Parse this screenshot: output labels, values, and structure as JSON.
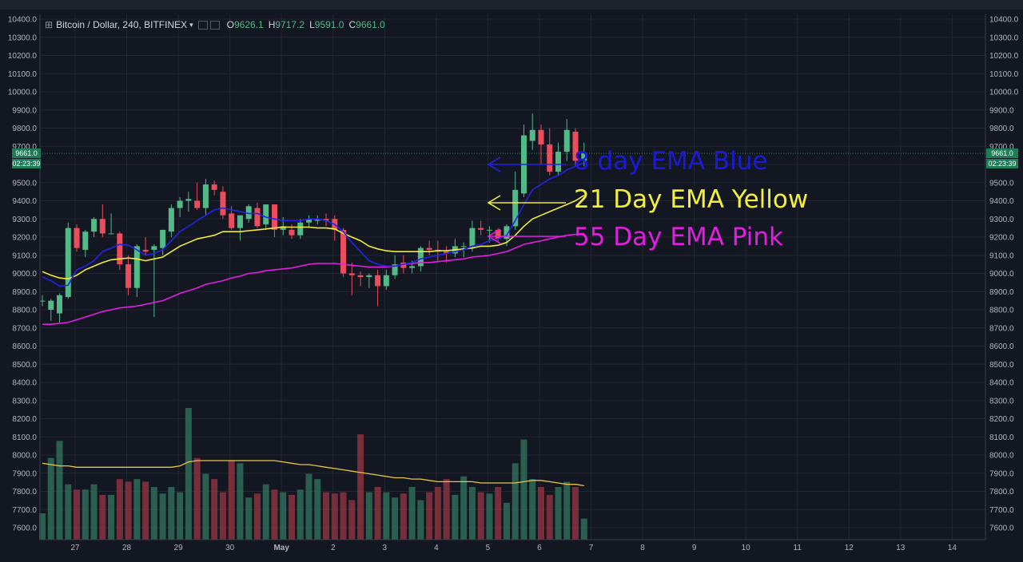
{
  "header": {
    "symbol_label": "Bitcoin / Dollar, 240, BITFINEX",
    "caret": "▾",
    "open_label": "O",
    "open_value": "9626.1",
    "high_label": "H",
    "high_value": "9717.2",
    "low_label": "L",
    "low_value": "9591.0",
    "close_label": "C",
    "close_value": "9661.0"
  },
  "badges": {
    "price": "9661.0",
    "timer": "02:23:39"
  },
  "annotations": [
    {
      "text": "8 day EMA Blue",
      "color": "#1a1ad8"
    },
    {
      "text": "21 Day EMA Yellow",
      "color": "#f4f03a"
    },
    {
      "text": "55 Day EMA Pink",
      "color": "#e21ee0"
    }
  ],
  "colors": {
    "up": "#53b987",
    "down": "#eb4d5c",
    "ema8": "#2424e8",
    "ema21": "#f2ec3a",
    "ema55": "#e21ee0",
    "vol_ma": "#e8c44a",
    "bg": "#131722"
  },
  "chart_data": {
    "type": "candlestick",
    "y_ticks": [
      "10400.0",
      "10300.0",
      "10200.0",
      "10100.0",
      "10000.0",
      "9900.0",
      "9800.0",
      "9700.0",
      "9600.0",
      "9500.0",
      "9400.0",
      "9300.0",
      "9200.0",
      "9100.0",
      "9000.0",
      "8900.0",
      "8800.0",
      "8700.0",
      "8600.0",
      "8500.0",
      "8400.0",
      "8300.0",
      "8200.0",
      "8100.0",
      "8000.0",
      "7900.0",
      "7800.0",
      "7700.0",
      "7600.0"
    ],
    "ylim": [
      7550,
      10430
    ],
    "x_ticks": [
      "27",
      "28",
      "29",
      "30",
      "May",
      "2",
      "3",
      "4",
      "5",
      "6",
      "7",
      "8",
      "9",
      "10",
      "11",
      "12",
      "13",
      "14"
    ],
    "candles": [
      [
        8850,
        8880,
        8820,
        8850
      ],
      [
        8800,
        8860,
        8740,
        8850
      ],
      [
        8780,
        8890,
        8730,
        8880
      ],
      [
        8870,
        9280,
        8860,
        9250
      ],
      [
        9250,
        9270,
        9120,
        9140
      ],
      [
        9130,
        9240,
        9090,
        9230
      ],
      [
        9230,
        9310,
        9200,
        9300
      ],
      [
        9300,
        9380,
        9200,
        9220
      ],
      [
        9220,
        9330,
        9220,
        9220
      ],
      [
        9220,
        9230,
        9020,
        9050
      ],
      [
        9050,
        9100,
        8880,
        8920
      ],
      [
        8920,
        9160,
        8870,
        9150
      ],
      [
        9130,
        9200,
        9100,
        9120
      ],
      [
        9130,
        9160,
        8760,
        9150
      ],
      [
        9140,
        9240,
        9100,
        9240
      ],
      [
        9230,
        9380,
        9200,
        9360
      ],
      [
        9360,
        9420,
        9310,
        9400
      ],
      [
        9400,
        9450,
        9340,
        9410
      ],
      [
        9400,
        9500,
        9350,
        9360
      ],
      [
        9360,
        9520,
        9320,
        9490
      ],
      [
        9490,
        9510,
        9430,
        9460
      ],
      [
        9450,
        9480,
        9300,
        9320
      ],
      [
        9330,
        9370,
        9240,
        9250
      ],
      [
        9250,
        9320,
        9180,
        9320
      ],
      [
        9300,
        9380,
        9280,
        9370
      ],
      [
        9360,
        9390,
        9250,
        9260
      ],
      [
        9270,
        9380,
        9240,
        9380
      ],
      [
        9380,
        9380,
        9200,
        9240
      ],
      [
        9240,
        9310,
        9210,
        9260
      ],
      [
        9240,
        9270,
        9190,
        9210
      ],
      [
        9210,
        9300,
        9190,
        9280
      ],
      [
        9280,
        9320,
        9250,
        9300
      ],
      [
        9290,
        9320,
        9270,
        9300
      ],
      [
        9300,
        9330,
        9260,
        9290
      ],
      [
        9300,
        9320,
        9180,
        9240
      ],
      [
        9240,
        9250,
        8980,
        9000
      ],
      [
        9000,
        9060,
        8880,
        8990
      ],
      [
        8990,
        9010,
        8930,
        8980
      ],
      [
        8980,
        9000,
        8920,
        8990
      ],
      [
        8990,
        9020,
        8820,
        8930
      ],
      [
        8930,
        9020,
        8910,
        8990
      ],
      [
        8990,
        9100,
        8970,
        9050
      ],
      [
        9060,
        9100,
        9000,
        9030
      ],
      [
        9030,
        9070,
        9000,
        9040
      ],
      [
        9040,
        9150,
        9010,
        9140
      ],
      [
        9140,
        9180,
        9100,
        9130
      ],
      [
        9130,
        9180,
        9070,
        9120
      ],
      [
        9120,
        9150,
        9060,
        9110
      ],
      [
        9110,
        9190,
        9090,
        9150
      ],
      [
        9150,
        9170,
        9090,
        9150
      ],
      [
        9150,
        9290,
        9120,
        9250
      ],
      [
        9250,
        9290,
        9210,
        9240
      ],
      [
        9240,
        9260,
        9170,
        9240
      ],
      [
        9240,
        9250,
        9170,
        9190
      ],
      [
        9190,
        9270,
        9150,
        9260
      ],
      [
        9260,
        9560,
        9240,
        9460
      ],
      [
        9440,
        9820,
        9420,
        9760
      ],
      [
        9730,
        9880,
        9680,
        9790
      ],
      [
        9790,
        9820,
        9600,
        9710
      ],
      [
        9710,
        9800,
        9540,
        9560
      ],
      [
        9560,
        9720,
        9540,
        9670
      ],
      [
        9670,
        9850,
        9620,
        9790
      ],
      [
        9780,
        9800,
        9590,
        9620
      ],
      [
        9620,
        9720,
        9590,
        9661
      ]
    ],
    "volume": [
      0.2,
      0.62,
      0.75,
      0.42,
      0.38,
      0.38,
      0.42,
      0.34,
      0.34,
      0.46,
      0.44,
      0.46,
      0.44,
      0.4,
      0.35,
      0.4,
      0.36,
      1.0,
      0.62,
      0.5,
      0.46,
      0.36,
      0.6,
      0.58,
      0.32,
      0.35,
      0.42,
      0.38,
      0.36,
      0.34,
      0.38,
      0.5,
      0.46,
      0.36,
      0.35,
      0.36,
      0.3,
      0.8,
      0.36,
      0.4,
      0.36,
      0.32,
      0.35,
      0.4,
      0.3,
      0.36,
      0.4,
      0.46,
      0.34,
      0.48,
      0.4,
      0.36,
      0.35,
      0.4,
      0.28,
      0.58,
      0.76,
      0.46,
      0.4,
      0.34,
      0.4,
      0.44,
      0.4,
      0.16
    ],
    "ema8": [
      8980,
      8960,
      8930,
      8935,
      9020,
      9040,
      9070,
      9120,
      9140,
      9160,
      9155,
      9130,
      9100,
      9110,
      9130,
      9180,
      9230,
      9260,
      9290,
      9320,
      9350,
      9360,
      9350,
      9340,
      9330,
      9330,
      9310,
      9300,
      9290,
      9290,
      9290,
      9300,
      9300,
      9290,
      9270,
      9230,
      9170,
      9120,
      9070,
      9050,
      9040,
      9040,
      9050,
      9060,
      9080,
      9090,
      9100,
      9110,
      9120,
      9130,
      9150,
      9160,
      9180,
      9190,
      9210,
      9290,
      9380,
      9460,
      9490,
      9520,
      9540,
      9570,
      9590,
      9610
    ],
    "ema21": [
      9010,
      8990,
      8975,
      8970,
      8990,
      9020,
      9040,
      9060,
      9075,
      9080,
      9085,
      9080,
      9070,
      9080,
      9090,
      9120,
      9150,
      9170,
      9190,
      9200,
      9210,
      9230,
      9230,
      9230,
      9235,
      9240,
      9245,
      9250,
      9255,
      9255,
      9255,
      9255,
      9250,
      9250,
      9245,
      9220,
      9200,
      9180,
      9150,
      9135,
      9125,
      9120,
      9120,
      9120,
      9120,
      9120,
      9125,
      9125,
      9130,
      9135,
      9140,
      9150,
      9150,
      9155,
      9170,
      9210,
      9260,
      9300,
      9320,
      9340,
      9360,
      9380,
      9400,
      9430
    ],
    "ema55": [
      8720,
      8720,
      8725,
      8730,
      8745,
      8760,
      8775,
      8790,
      8800,
      8810,
      8815,
      8820,
      8830,
      8840,
      8850,
      8870,
      8890,
      8905,
      8920,
      8940,
      8950,
      8960,
      8975,
      8985,
      9000,
      9005,
      9015,
      9020,
      9025,
      9030,
      9040,
      9050,
      9055,
      9055,
      9055,
      9050,
      9045,
      9040,
      9035,
      9035,
      9035,
      9040,
      9050,
      9055,
      9060,
      9060,
      9065,
      9070,
      9075,
      9080,
      9090,
      9095,
      9100,
      9110,
      9120,
      9140,
      9160,
      9170,
      9180,
      9190,
      9200,
      9210,
      9215,
      9220
    ],
    "vol_ma": [
      0.58,
      0.57,
      0.56,
      0.56,
      0.55,
      0.55,
      0.55,
      0.55,
      0.55,
      0.55,
      0.55,
      0.55,
      0.55,
      0.55,
      0.55,
      0.55,
      0.56,
      0.59,
      0.6,
      0.6,
      0.6,
      0.6,
      0.6,
      0.6,
      0.6,
      0.6,
      0.6,
      0.6,
      0.59,
      0.58,
      0.57,
      0.57,
      0.56,
      0.55,
      0.54,
      0.53,
      0.52,
      0.51,
      0.5,
      0.49,
      0.48,
      0.47,
      0.47,
      0.46,
      0.46,
      0.45,
      0.44,
      0.44,
      0.44,
      0.44,
      0.44,
      0.43,
      0.43,
      0.43,
      0.43,
      0.43,
      0.44,
      0.45,
      0.45,
      0.44,
      0.43,
      0.42,
      0.42,
      0.41
    ]
  }
}
